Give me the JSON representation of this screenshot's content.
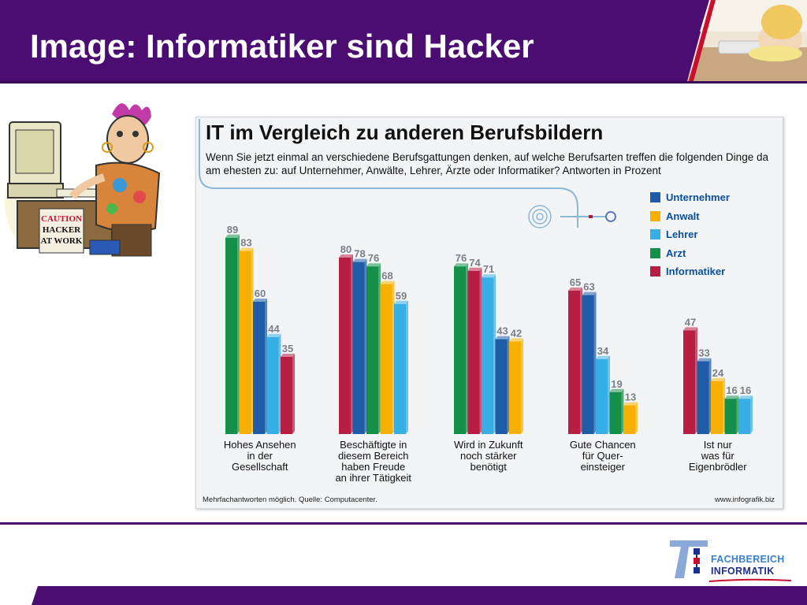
{
  "slide": {
    "title": "Image: Informatiker sind Hacker"
  },
  "hacker_image": {
    "sign_line1": "CAUTION",
    "sign_line2": "HACKER",
    "sign_line3": "AT WORK"
  },
  "logo": {
    "line1": "FACHBEREICH",
    "line2": "INFORMATIK"
  },
  "chart_data": {
    "type": "bar",
    "title": "IT im Vergleich zu anderen Berufsbildern",
    "subtitle": "Wenn Sie jetzt einmal an verschiedene Berufsgattungen denken, auf welche Berufsarten treffen die folgenden Dinge da am ehesten zu: auf Unternehmer, Anwälte, Lehrer, Ärzte oder Informatiker?  Antworten in Prozent",
    "categories": [
      [
        "Hohes Ansehen",
        "in der",
        "Gesellschaft"
      ],
      [
        "Beschäftigte in",
        "diesem Bereich",
        "haben Freude",
        "an ihrer Tätigkeit"
      ],
      [
        "Wird in Zukunft",
        "noch stärker",
        "benötigt"
      ],
      [
        "Gute Chancen",
        "für Quer-",
        "einsteiger"
      ],
      [
        "Ist nur",
        "was für",
        "Eigenbrödler"
      ]
    ],
    "series": [
      {
        "name": "Unternehmer",
        "color": "#1f5ca8"
      },
      {
        "name": "Anwalt",
        "color": "#f7b000"
      },
      {
        "name": "Lehrer",
        "color": "#37aee6"
      },
      {
        "name": "Arzt",
        "color": "#14904a"
      },
      {
        "name": "Informatiker",
        "color": "#b81e44"
      }
    ],
    "groups": [
      [
        {
          "series": "Arzt",
          "value": 89
        },
        {
          "series": "Anwalt",
          "value": 83
        },
        {
          "series": "Unternehmer",
          "value": 60
        },
        {
          "series": "Lehrer",
          "value": 44
        },
        {
          "series": "Informatiker",
          "value": 35
        }
      ],
      [
        {
          "series": "Informatiker",
          "value": 80
        },
        {
          "series": "Unternehmer",
          "value": 78
        },
        {
          "series": "Arzt",
          "value": 76
        },
        {
          "series": "Anwalt",
          "value": 68
        },
        {
          "series": "Lehrer",
          "value": 59
        }
      ],
      [
        {
          "series": "Arzt",
          "value": 76
        },
        {
          "series": "Informatiker",
          "value": 74
        },
        {
          "series": "Lehrer",
          "value": 71
        },
        {
          "series": "Unternehmer",
          "value": 43
        },
        {
          "series": "Anwalt",
          "value": 42
        }
      ],
      [
        {
          "series": "Informatiker",
          "value": 65
        },
        {
          "series": "Unternehmer",
          "value": 63
        },
        {
          "series": "Lehrer",
          "value": 34
        },
        {
          "series": "Arzt",
          "value": 19
        },
        {
          "series": "Anwalt",
          "value": 13
        }
      ],
      [
        {
          "series": "Informatiker",
          "value": 47
        },
        {
          "series": "Unternehmer",
          "value": 33
        },
        {
          "series": "Anwalt",
          "value": 24
        },
        {
          "series": "Arzt",
          "value": 16
        },
        {
          "series": "Lehrer",
          "value": 16
        }
      ]
    ],
    "ylim": [
      0,
      100
    ],
    "legend": "top-right",
    "grid": false,
    "footnote_left": "Mehrfachantworten möglich. Quelle: Computacenter.",
    "footnote_right": "www.infografik.biz"
  }
}
